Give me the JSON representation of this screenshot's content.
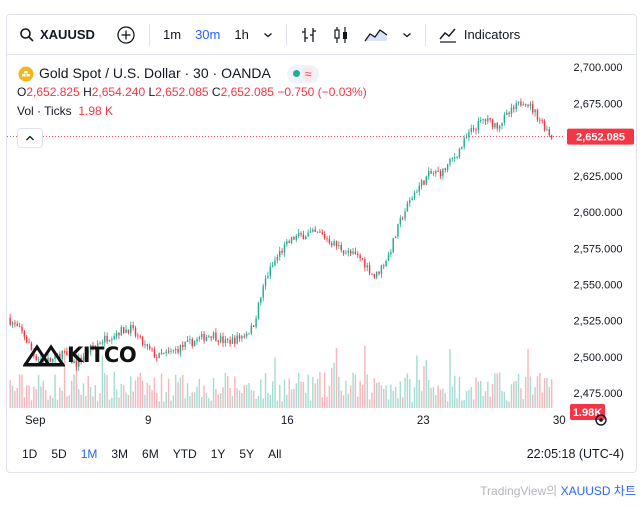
{
  "toolbar": {
    "symbol": "XAUUSD",
    "intervals": [
      {
        "label": "1m",
        "active": false
      },
      {
        "label": "30m",
        "active": true
      },
      {
        "label": "1h",
        "active": false
      }
    ],
    "indicators_label": "Indicators"
  },
  "legend": {
    "title": "Gold Spot / U.S. Dollar · 30 · OANDA",
    "open_label": "O",
    "open": "2,652.825",
    "high_label": "H",
    "high": "2,654.240",
    "low_label": "L",
    "low": "2,652.085",
    "close_label": "C",
    "close": "2,652.085",
    "change": "−0.750 (−0.03%)",
    "vol_label": "Vol · Ticks",
    "vol_value": "1.98 K"
  },
  "watermark": {
    "brand": "KITCO"
  },
  "price_axis": {
    "ticks": [
      "2,700.000",
      "2,675.000",
      "2,650.000",
      "2,625.000",
      "2,600.000",
      "2,575.000",
      "2,550.000",
      "2,525.000",
      "2,500.000",
      "2,475.000"
    ],
    "last_price": "2,652.085",
    "last_volume": "1.98K"
  },
  "time_axis": {
    "ticks": [
      "Sep",
      "9",
      "16",
      "23",
      "30"
    ]
  },
  "ranges": [
    {
      "label": "1D",
      "active": false
    },
    {
      "label": "5D",
      "active": false
    },
    {
      "label": "1M",
      "active": true
    },
    {
      "label": "3M",
      "active": false
    },
    {
      "label": "6M",
      "active": false
    },
    {
      "label": "YTD",
      "active": false
    },
    {
      "label": "1Y",
      "active": false
    },
    {
      "label": "5Y",
      "active": false
    },
    {
      "label": "All",
      "active": false
    }
  ],
  "clock": "22:05:18 (UTC-4)",
  "attribution": {
    "prefix": "TradingView의 ",
    "link": "XAUUSD 차트"
  },
  "colors": {
    "up": "#22ab94",
    "down": "#f23645",
    "up_vol": "#a7dcd3",
    "down_vol": "#f7b6bc",
    "accent": "#2962ff"
  },
  "chart_data": {
    "type": "candlestick",
    "y_min": 2462,
    "y_max": 2705,
    "x_ticks": [
      {
        "label": "Sep",
        "x": 0
      },
      {
        "label": "9",
        "x": 5
      },
      {
        "label": "16",
        "x": 10
      },
      {
        "label": "23",
        "x": 15
      },
      {
        "label": "30",
        "x": 20
      }
    ],
    "price_keypoints": [
      [
        0,
        2527
      ],
      [
        0.6,
        2515
      ],
      [
        1.0,
        2500
      ],
      [
        1.6,
        2497
      ],
      [
        2.0,
        2503
      ],
      [
        2.5,
        2495
      ],
      [
        3.0,
        2505
      ],
      [
        3.5,
        2512
      ],
      [
        4.0,
        2517
      ],
      [
        4.5,
        2520
      ],
      [
        5.0,
        2508
      ],
      [
        5.5,
        2500
      ],
      [
        6.0,
        2503
      ],
      [
        6.5,
        2508
      ],
      [
        7.0,
        2512
      ],
      [
        7.5,
        2516
      ],
      [
        8.0,
        2510
      ],
      [
        8.5,
        2513
      ],
      [
        9.0,
        2520
      ],
      [
        9.5,
        2555
      ],
      [
        10.0,
        2572
      ],
      [
        10.5,
        2582
      ],
      [
        11.0,
        2585
      ],
      [
        11.5,
        2585
      ],
      [
        12.0,
        2578
      ],
      [
        12.5,
        2572
      ],
      [
        13.0,
        2568
      ],
      [
        13.5,
        2555
      ],
      [
        14.0,
        2570
      ],
      [
        14.5,
        2597
      ],
      [
        15.0,
        2615
      ],
      [
        15.5,
        2626
      ],
      [
        16.0,
        2628
      ],
      [
        16.5,
        2640
      ],
      [
        17.0,
        2655
      ],
      [
        17.5,
        2664
      ],
      [
        18.0,
        2660
      ],
      [
        18.5,
        2669
      ],
      [
        19.0,
        2678
      ],
      [
        19.5,
        2666
      ],
      [
        20.0,
        2652
      ]
    ]
  }
}
